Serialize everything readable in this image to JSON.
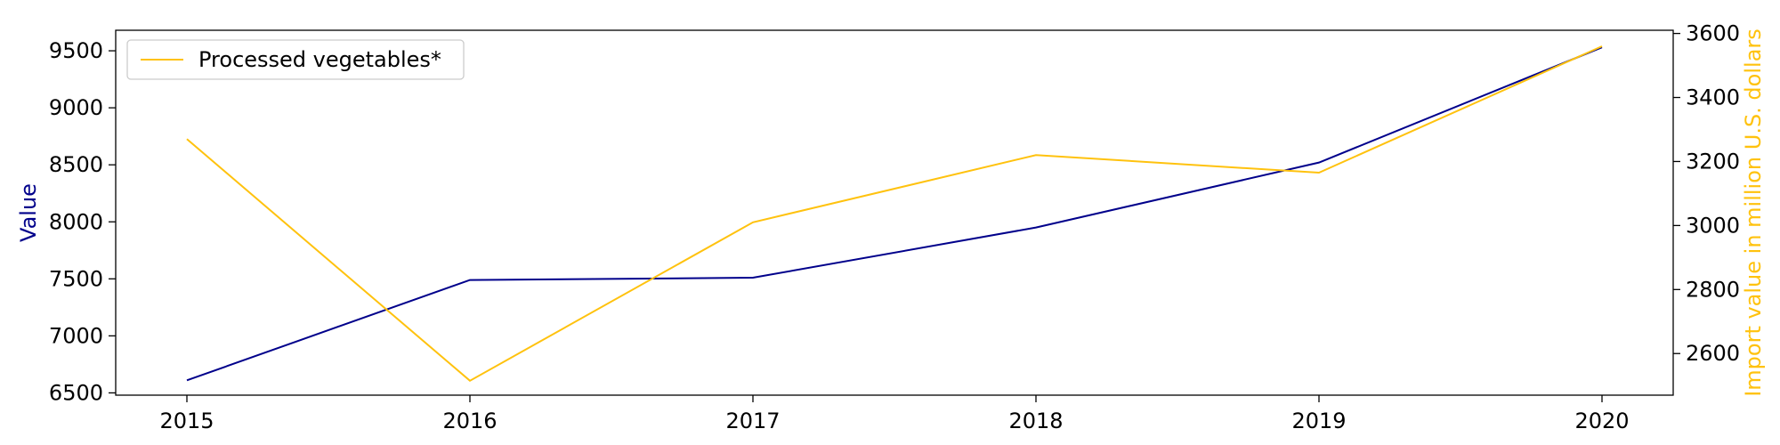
{
  "chart_data": {
    "type": "line",
    "x": [
      2015,
      2016,
      2017,
      2018,
      2019,
      2020
    ],
    "categories": [
      "2015",
      "2016",
      "2017",
      "2018",
      "2019",
      "2020"
    ],
    "series": [
      {
        "axis": "left",
        "color": "#00008b",
        "values": [
          6610,
          7490,
          7510,
          7950,
          8520,
          9530
        ]
      },
      {
        "name": "Processed vegetables*",
        "axis": "right",
        "color": "#ffc20e",
        "values": [
          3270,
          2515,
          3010,
          3220,
          3165,
          3560
        ]
      }
    ],
    "ylabel": "Value",
    "ylabel_color": "#00008b",
    "y2label": "Import value in million U.S. dollars",
    "y2label_color": "#ffc20e",
    "ylim": [
      6480,
      9680
    ],
    "y2lim": [
      2470,
      3610
    ],
    "yticks": [
      6500,
      7000,
      7500,
      8000,
      8500,
      9000,
      9500
    ],
    "y2ticks": [
      2600,
      2800,
      3000,
      3200,
      3400,
      3600
    ],
    "legend": {
      "position": "top-left",
      "entries": [
        "Processed vegetables*"
      ]
    },
    "grid": false
  }
}
